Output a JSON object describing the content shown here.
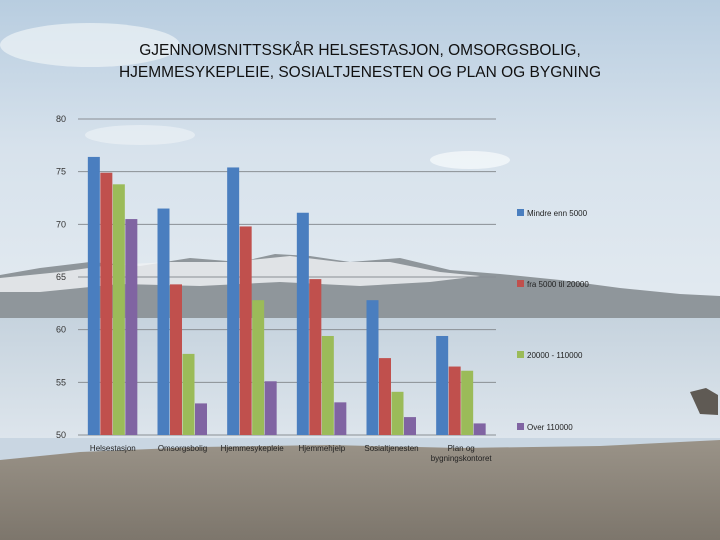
{
  "title_line1": "GJENNOMSNITTSSKÅR HELSESTASJON, OMSORGSBOLIG,",
  "title_line2": "HJEMMESYKEPLEIE, SOSIALTJENESTEN OG PLAN OG BYGNING",
  "chart_data": {
    "type": "bar",
    "title": "GJENNOMSNITTSSKÅR HELSESTASJON, OMSORGSBOLIG, HJEMMESYKEPLEIE, SOSIALTJENESTEN OG PLAN OG BYGNING",
    "categories": [
      "Helsestasjon",
      "Omsorgsbolig",
      "Hjemmesykepleie",
      "Hjemmehjelp",
      "Sosialtjenesten",
      "Plan og bygningskontoret"
    ],
    "category_lines": [
      [
        "Helsestasjon"
      ],
      [
        "Omsorgsbolig"
      ],
      [
        "Hjemmesykepleie"
      ],
      [
        "Hjemmehjelp"
      ],
      [
        "Sosialtjenesten"
      ],
      [
        "Plan og",
        "bygningskontoret"
      ]
    ],
    "series": [
      {
        "name": "Mindre enn 5000",
        "color": "#4a7ebf",
        "values": [
          76.4,
          71.5,
          75.4,
          71.1,
          62.8,
          59.4
        ]
      },
      {
        "name": "fra 5000 til 20000",
        "color": "#c0504d",
        "values": [
          74.9,
          64.3,
          69.8,
          64.8,
          57.3,
          56.5
        ]
      },
      {
        "name": "20000 - 110000",
        "color": "#9bbb59",
        "values": [
          73.8,
          57.7,
          62.8,
          59.4,
          54.1,
          56.1
        ]
      },
      {
        "name": "Over 110000",
        "color": "#8064a2",
        "values": [
          70.5,
          53.0,
          55.1,
          53.1,
          51.7,
          51.1
        ]
      }
    ],
    "ylim": [
      50,
      80
    ],
    "yticks": [
      50,
      55,
      60,
      65,
      70,
      75,
      80
    ],
    "grid": true,
    "legend": "right",
    "xlabel": "",
    "ylabel": ""
  }
}
